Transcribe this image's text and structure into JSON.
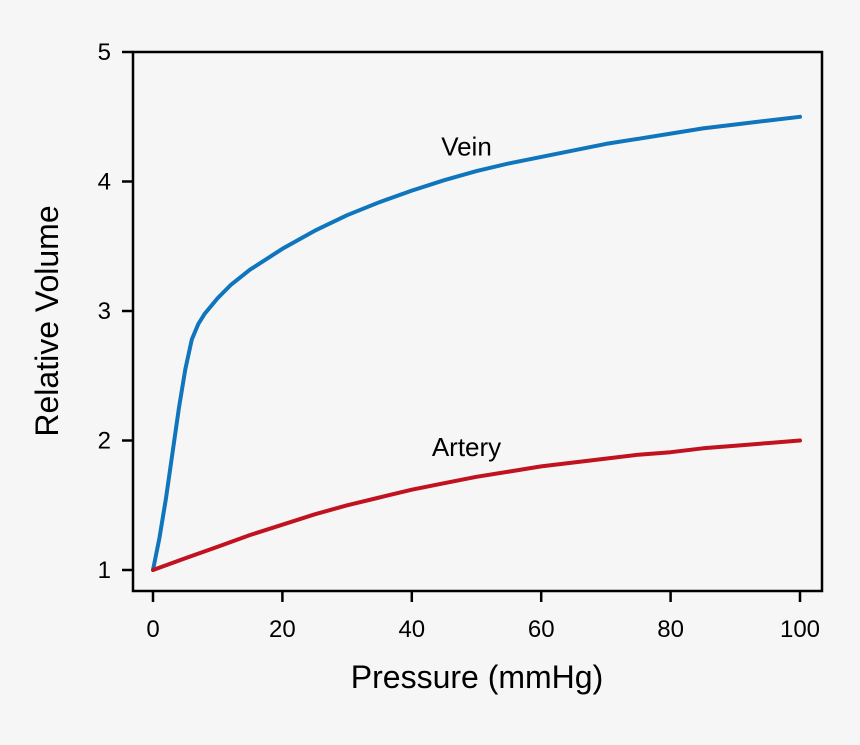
{
  "chart_data": {
    "type": "line",
    "xlabel": "Pressure (mmHg)",
    "ylabel": "Relative Volume",
    "xlim": [
      0,
      100
    ],
    "ylim": [
      1,
      5
    ],
    "xticks": [
      "0",
      "20",
      "40",
      "60",
      "80",
      "100"
    ],
    "yticks": [
      "1",
      "2",
      "3",
      "4",
      "5"
    ],
    "grid": false,
    "legend": "none",
    "series": [
      {
        "name": "Vein",
        "color": "#0f75bc",
        "x": [
          0,
          1,
          2,
          3,
          4,
          5,
          6,
          7,
          8,
          10,
          12,
          15,
          20,
          25,
          30,
          35,
          40,
          45,
          50,
          55,
          60,
          65,
          70,
          75,
          80,
          85,
          90,
          95,
          100
        ],
        "y": [
          1.0,
          1.25,
          1.55,
          1.9,
          2.25,
          2.55,
          2.78,
          2.9,
          2.98,
          3.1,
          3.2,
          3.32,
          3.48,
          3.62,
          3.74,
          3.84,
          3.93,
          4.01,
          4.08,
          4.14,
          4.19,
          4.24,
          4.29,
          4.33,
          4.37,
          4.41,
          4.44,
          4.47,
          4.5
        ]
      },
      {
        "name": "Artery",
        "color": "#c1121f",
        "x": [
          0,
          5,
          10,
          15,
          20,
          25,
          30,
          35,
          40,
          45,
          50,
          55,
          60,
          65,
          70,
          75,
          80,
          85,
          90,
          95,
          100
        ],
        "y": [
          1.0,
          1.09,
          1.18,
          1.27,
          1.35,
          1.43,
          1.5,
          1.56,
          1.62,
          1.67,
          1.72,
          1.76,
          1.8,
          1.83,
          1.86,
          1.89,
          1.91,
          1.94,
          1.96,
          1.98,
          2.0
        ]
      }
    ],
    "annotations": [
      {
        "text": "Vein",
        "x": 50,
        "y": 4.27
      },
      {
        "text": "Artery",
        "x": 50,
        "y": 1.95
      }
    ]
  }
}
